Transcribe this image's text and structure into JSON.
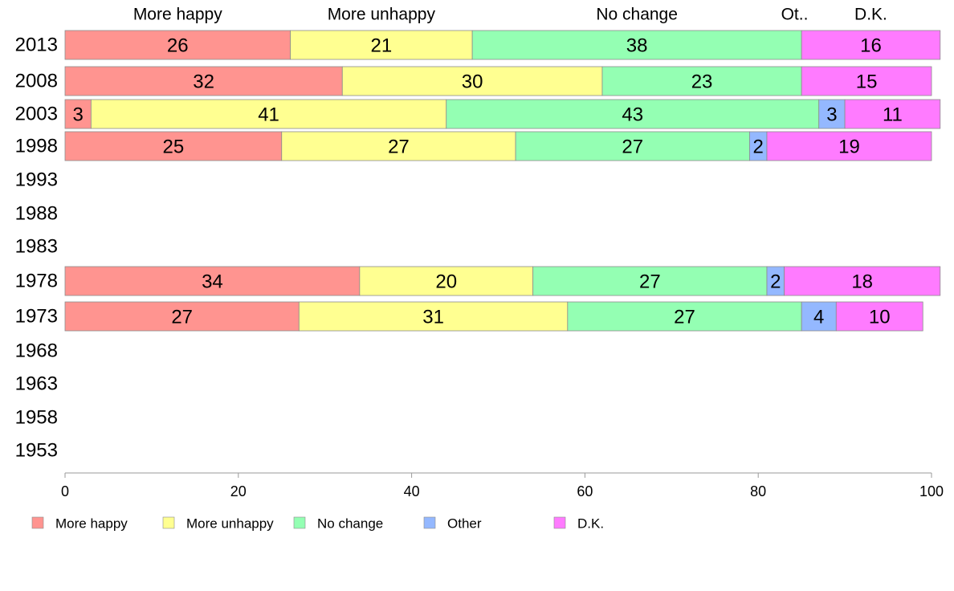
{
  "chart_data": {
    "type": "bar",
    "orientation": "horizontal",
    "stacked": true,
    "categories": [
      "2013",
      "2008",
      "2003",
      "1998",
      "1993",
      "1988",
      "1983",
      "1978",
      "1973",
      "1968",
      "1963",
      "1958",
      "1953"
    ],
    "series": [
      {
        "name": "More happy",
        "color": "#ff9490",
        "values": [
          26,
          32,
          3,
          25,
          null,
          null,
          null,
          34,
          27,
          null,
          null,
          null,
          null
        ]
      },
      {
        "name": "More unhappy",
        "color": "#ffff91",
        "values": [
          21,
          30,
          41,
          27,
          null,
          null,
          null,
          20,
          31,
          null,
          null,
          null,
          null
        ]
      },
      {
        "name": "No change",
        "color": "#94ffb3",
        "values": [
          38,
          23,
          43,
          27,
          null,
          null,
          null,
          27,
          27,
          null,
          null,
          null,
          null
        ]
      },
      {
        "name": "Other",
        "color": "#94b8ff",
        "values": [
          0,
          0,
          3,
          2,
          null,
          null,
          null,
          2,
          4,
          null,
          null,
          null,
          null
        ]
      },
      {
        "name": "D.K.",
        "color": "#ff7bff",
        "values": [
          16,
          15,
          11,
          19,
          null,
          null,
          null,
          18,
          10,
          null,
          null,
          null,
          null
        ]
      }
    ],
    "column_headers": [
      "More happy",
      "More unhappy",
      "No change",
      "Ot..",
      "D.K."
    ],
    "xlim": [
      0,
      100
    ],
    "xticks": [
      0,
      20,
      40,
      60,
      80,
      100
    ],
    "grid": false,
    "legend_position": "bottom",
    "legend_entries": [
      "More happy",
      "More unhappy",
      "No change",
      "Other",
      "D.K."
    ]
  }
}
